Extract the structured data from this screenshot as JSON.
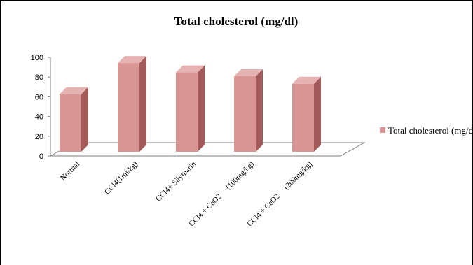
{
  "chart_data": {
    "type": "bar",
    "title": "Total cholesterol (mg/dl)",
    "categories": [
      "Normal",
      "CCl4(1ml/kg)",
      "CCl4+ Silymarin",
      "CCl4 + CeO2     (100mg/kg)",
      "CCl4 + CeO2     (200mg/kg)"
    ],
    "series": [
      {
        "name": "Total cholesterol (mg/dl)",
        "values": [
          61,
          94,
          84,
          80,
          72
        ]
      }
    ],
    "y_ticks": [
      "0",
      "20",
      "40",
      "60",
      "80",
      "100"
    ],
    "ylim": [
      0,
      100
    ],
    "legend_position": "right",
    "grid": false,
    "colors": {
      "front": "#d99594",
      "side": "#a35a59",
      "top": "#e6b3b2",
      "legend": "#d99594"
    }
  }
}
